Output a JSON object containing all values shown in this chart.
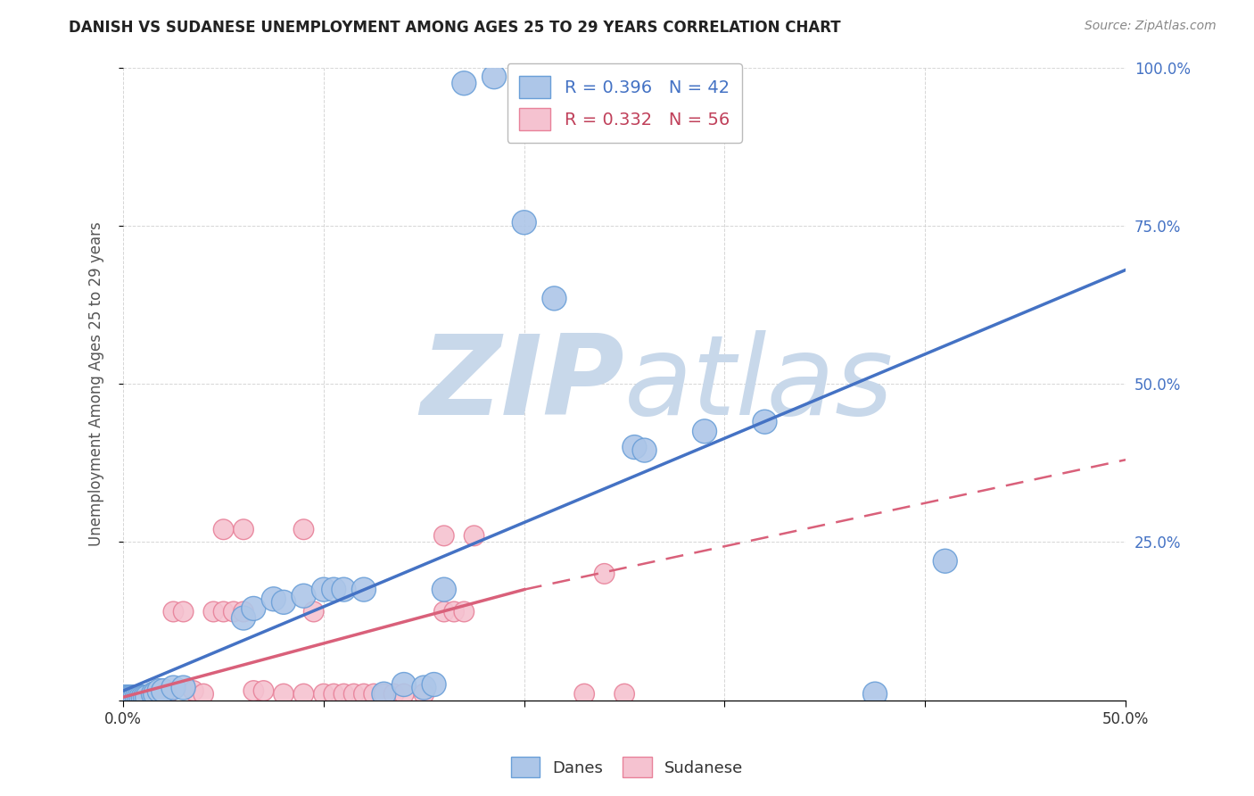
{
  "title": "DANISH VS SUDANESE UNEMPLOYMENT AMONG AGES 25 TO 29 YEARS CORRELATION CHART",
  "source": "Source: ZipAtlas.com",
  "ylabel": "Unemployment Among Ages 25 to 29 years",
  "xlim": [
    0.0,
    0.5
  ],
  "ylim": [
    0.0,
    1.0
  ],
  "xticks": [
    0.0,
    0.1,
    0.2,
    0.3,
    0.4,
    0.5
  ],
  "yticks": [
    0.0,
    0.25,
    0.5,
    0.75,
    1.0
  ],
  "xtick_labels": [
    "0.0%",
    "",
    "",
    "",
    "",
    "50.0%"
  ],
  "ytick_labels_right": [
    "",
    "25.0%",
    "50.0%",
    "75.0%",
    "100.0%"
  ],
  "danes_R": 0.396,
  "danes_N": 42,
  "sudanese_R": 0.332,
  "sudanese_N": 56,
  "danes_color": "#adc6e8",
  "danes_edge_color": "#6a9fd8",
  "danes_line_color": "#4472c4",
  "sudanese_color": "#f5c2d0",
  "sudanese_edge_color": "#e8829a",
  "sudanese_line_color": "#d9607a",
  "danes_scatter": [
    [
      0.001,
      0.005
    ],
    [
      0.002,
      0.005
    ],
    [
      0.003,
      0.005
    ],
    [
      0.004,
      0.005
    ],
    [
      0.005,
      0.005
    ],
    [
      0.006,
      0.005
    ],
    [
      0.007,
      0.005
    ],
    [
      0.008,
      0.005
    ],
    [
      0.009,
      0.005
    ],
    [
      0.01,
      0.005
    ],
    [
      0.011,
      0.005
    ],
    [
      0.012,
      0.005
    ],
    [
      0.015,
      0.01
    ],
    [
      0.016,
      0.01
    ],
    [
      0.018,
      0.015
    ],
    [
      0.02,
      0.015
    ],
    [
      0.025,
      0.02
    ],
    [
      0.03,
      0.02
    ],
    [
      0.06,
      0.13
    ],
    [
      0.065,
      0.145
    ],
    [
      0.075,
      0.16
    ],
    [
      0.08,
      0.155
    ],
    [
      0.09,
      0.165
    ],
    [
      0.1,
      0.175
    ],
    [
      0.105,
      0.175
    ],
    [
      0.11,
      0.175
    ],
    [
      0.12,
      0.175
    ],
    [
      0.13,
      0.01
    ],
    [
      0.14,
      0.025
    ],
    [
      0.15,
      0.02
    ],
    [
      0.155,
      0.025
    ],
    [
      0.16,
      0.175
    ],
    [
      0.17,
      0.975
    ],
    [
      0.185,
      0.985
    ],
    [
      0.2,
      0.755
    ],
    [
      0.215,
      0.635
    ],
    [
      0.255,
      0.4
    ],
    [
      0.26,
      0.395
    ],
    [
      0.29,
      0.425
    ],
    [
      0.32,
      0.44
    ],
    [
      0.375,
      0.01
    ],
    [
      0.41,
      0.22
    ]
  ],
  "sudanese_scatter": [
    [
      0.0,
      0.005
    ],
    [
      0.001,
      0.005
    ],
    [
      0.002,
      0.005
    ],
    [
      0.003,
      0.005
    ],
    [
      0.004,
      0.005
    ],
    [
      0.005,
      0.005
    ],
    [
      0.006,
      0.005
    ],
    [
      0.007,
      0.005
    ],
    [
      0.008,
      0.005
    ],
    [
      0.009,
      0.005
    ],
    [
      0.01,
      0.005
    ],
    [
      0.011,
      0.005
    ],
    [
      0.012,
      0.005
    ],
    [
      0.013,
      0.005
    ],
    [
      0.015,
      0.005
    ],
    [
      0.016,
      0.005
    ],
    [
      0.017,
      0.005
    ],
    [
      0.018,
      0.005
    ],
    [
      0.019,
      0.005
    ],
    [
      0.02,
      0.005
    ],
    [
      0.022,
      0.01
    ],
    [
      0.025,
      0.14
    ],
    [
      0.03,
      0.14
    ],
    [
      0.035,
      0.015
    ],
    [
      0.04,
      0.01
    ],
    [
      0.045,
      0.14
    ],
    [
      0.05,
      0.14
    ],
    [
      0.055,
      0.14
    ],
    [
      0.06,
      0.14
    ],
    [
      0.065,
      0.015
    ],
    [
      0.07,
      0.015
    ],
    [
      0.08,
      0.01
    ],
    [
      0.09,
      0.01
    ],
    [
      0.095,
      0.14
    ],
    [
      0.1,
      0.01
    ],
    [
      0.105,
      0.01
    ],
    [
      0.11,
      0.01
    ],
    [
      0.115,
      0.01
    ],
    [
      0.12,
      0.01
    ],
    [
      0.125,
      0.01
    ],
    [
      0.13,
      0.01
    ],
    [
      0.135,
      0.01
    ],
    [
      0.14,
      0.01
    ],
    [
      0.15,
      0.01
    ],
    [
      0.16,
      0.14
    ],
    [
      0.165,
      0.14
    ],
    [
      0.17,
      0.14
    ],
    [
      0.05,
      0.27
    ],
    [
      0.06,
      0.27
    ],
    [
      0.09,
      0.27
    ],
    [
      0.16,
      0.26
    ],
    [
      0.175,
      0.26
    ],
    [
      0.23,
      0.01
    ],
    [
      0.24,
      0.2
    ],
    [
      0.25,
      0.01
    ]
  ],
  "danes_line": {
    "x0": 0.0,
    "y0": 0.015,
    "x1": 0.5,
    "y1": 0.68
  },
  "sudanese_line_solid": {
    "x0": 0.0,
    "y0": 0.005,
    "x1": 0.2,
    "y1": 0.175
  },
  "sudanese_line_dashed": {
    "x0": 0.2,
    "y0": 0.175,
    "x1": 0.5,
    "y1": 0.38
  },
  "watermark_zip": "ZIP",
  "watermark_atlas": "atlas",
  "watermark_color": "#c8d8ea",
  "legend_danes_label": "Danes",
  "legend_sudanese_label": "Sudanese",
  "background_color": "#ffffff",
  "grid_color": "#cccccc",
  "title_color": "#222222",
  "axis_label_color": "#555555",
  "right_ytick_color": "#4472c4",
  "legend_text_color_danes": "#4472c4",
  "legend_text_color_sudanese": "#c0405a"
}
